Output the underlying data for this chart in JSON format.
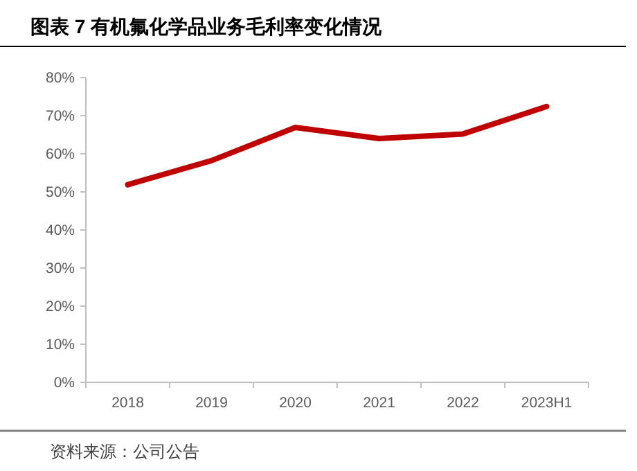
{
  "chart_data": {
    "type": "line",
    "title": "图表 7 有机氟化学品业务毛利率变化情况",
    "categories": [
      "2018",
      "2019",
      "2020",
      "2021",
      "2022",
      "2023H1"
    ],
    "series": [
      {
        "color": "#c00000",
        "values": [
          0.519,
          0.582,
          0.669,
          0.64,
          0.652,
          0.724
        ]
      }
    ],
    "ylim": [
      0,
      0.8
    ],
    "yticks": [
      {
        "value": 0,
        "label": "0%"
      },
      {
        "value": 0.1,
        "label": "10%"
      },
      {
        "value": 0.2,
        "label": "20%"
      },
      {
        "value": 0.3,
        "label": "30%"
      },
      {
        "value": 0.4,
        "label": "40%"
      },
      {
        "value": 0.5,
        "label": "50%"
      },
      {
        "value": 0.6,
        "label": "60%"
      },
      {
        "value": 0.7,
        "label": "70%"
      },
      {
        "value": 0.8,
        "label": "80%"
      }
    ],
    "grid": false,
    "marker": "none",
    "line_style": "solid",
    "annotations": [
      "资料来源：公司公告"
    ]
  }
}
